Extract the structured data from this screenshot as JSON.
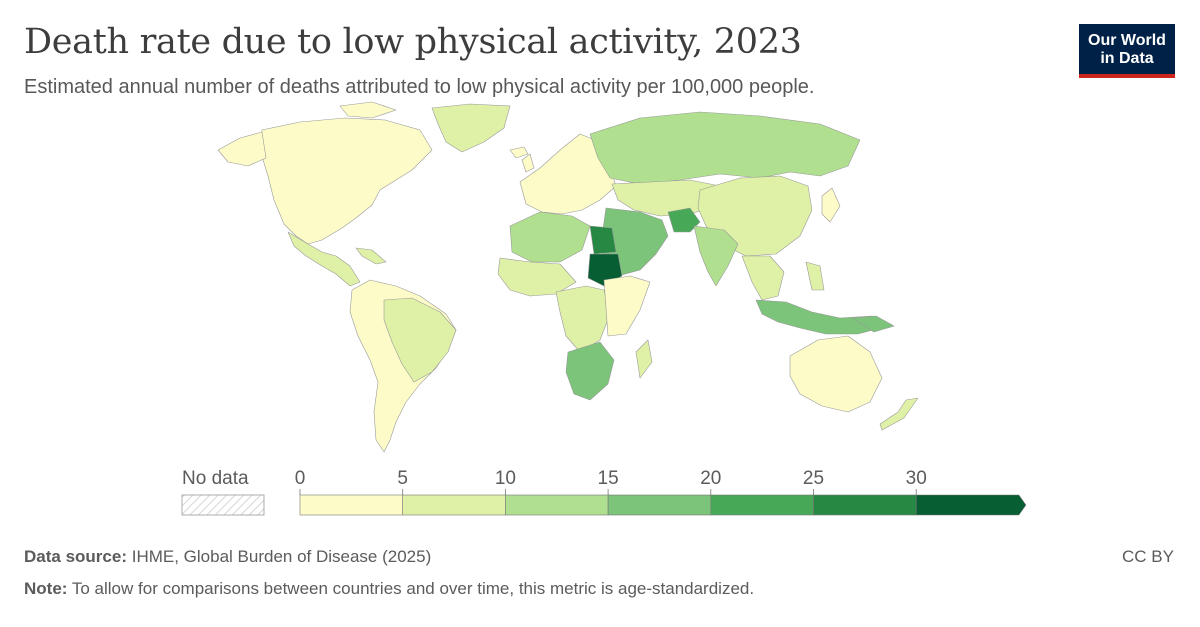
{
  "header": {
    "title": "Death rate due to low physical activity, 2023",
    "subtitle": "Estimated annual number of deaths attributed to low physical activity per 100,000 people."
  },
  "logo": {
    "line1": "Our World",
    "line2": "in Data"
  },
  "legend": {
    "no_data_label": "No data",
    "ticks": [
      "0",
      "5",
      "10",
      "15",
      "20",
      "25",
      "30"
    ],
    "bins": [
      {
        "from": 0,
        "to": 5,
        "color": "#fdfcc9"
      },
      {
        "from": 5,
        "to": 10,
        "color": "#def1a6"
      },
      {
        "from": 10,
        "to": 15,
        "color": "#b0e08f"
      },
      {
        "from": 15,
        "to": 20,
        "color": "#7cc47a"
      },
      {
        "from": 20,
        "to": 25,
        "color": "#47a958"
      },
      {
        "from": 25,
        "to": 30,
        "color": "#268843"
      },
      {
        "from": 30,
        "to": null,
        "color": "#075e32"
      }
    ]
  },
  "map_regions": [
    {
      "name": "north-america",
      "color": "#fdfcc9"
    },
    {
      "name": "greenland",
      "color": "#def1a6"
    },
    {
      "name": "central-america",
      "color": "#def1a6"
    },
    {
      "name": "south-america",
      "color": "#fdfcc9"
    },
    {
      "name": "brazil",
      "color": "#def1a6"
    },
    {
      "name": "europe",
      "color": "#fdfcc9"
    },
    {
      "name": "russia",
      "color": "#b0e08f"
    },
    {
      "name": "central-asia",
      "color": "#def1a6"
    },
    {
      "name": "china",
      "color": "#def1a6"
    },
    {
      "name": "india",
      "color": "#b0e08f"
    },
    {
      "name": "middle-east",
      "color": "#7cc47a"
    },
    {
      "name": "afghanistan",
      "color": "#47a958"
    },
    {
      "name": "north-africa",
      "color": "#b0e08f"
    },
    {
      "name": "egypt",
      "color": "#268843"
    },
    {
      "name": "sudan",
      "color": "#075e32"
    },
    {
      "name": "west-africa",
      "color": "#def1a6"
    },
    {
      "name": "central-africa",
      "color": "#def1a6"
    },
    {
      "name": "east-africa",
      "color": "#fdfcc9"
    },
    {
      "name": "southern-africa",
      "color": "#7cc47a"
    },
    {
      "name": "madagascar",
      "color": "#def1a6"
    },
    {
      "name": "southeast-asia",
      "color": "#def1a6"
    },
    {
      "name": "indonesia",
      "color": "#7cc47a"
    },
    {
      "name": "australia",
      "color": "#fdfcc9"
    },
    {
      "name": "new-zealand",
      "color": "#def1a6"
    },
    {
      "name": "japan",
      "color": "#fdfcc9"
    }
  ],
  "footer": {
    "source_label": "Data source:",
    "source_text": "IHME, Global Burden of Disease (2025)",
    "note_label": "Note:",
    "note_text": "To allow for comparisons between countries and over time, this metric is age-standardized.",
    "license": "CC BY"
  }
}
